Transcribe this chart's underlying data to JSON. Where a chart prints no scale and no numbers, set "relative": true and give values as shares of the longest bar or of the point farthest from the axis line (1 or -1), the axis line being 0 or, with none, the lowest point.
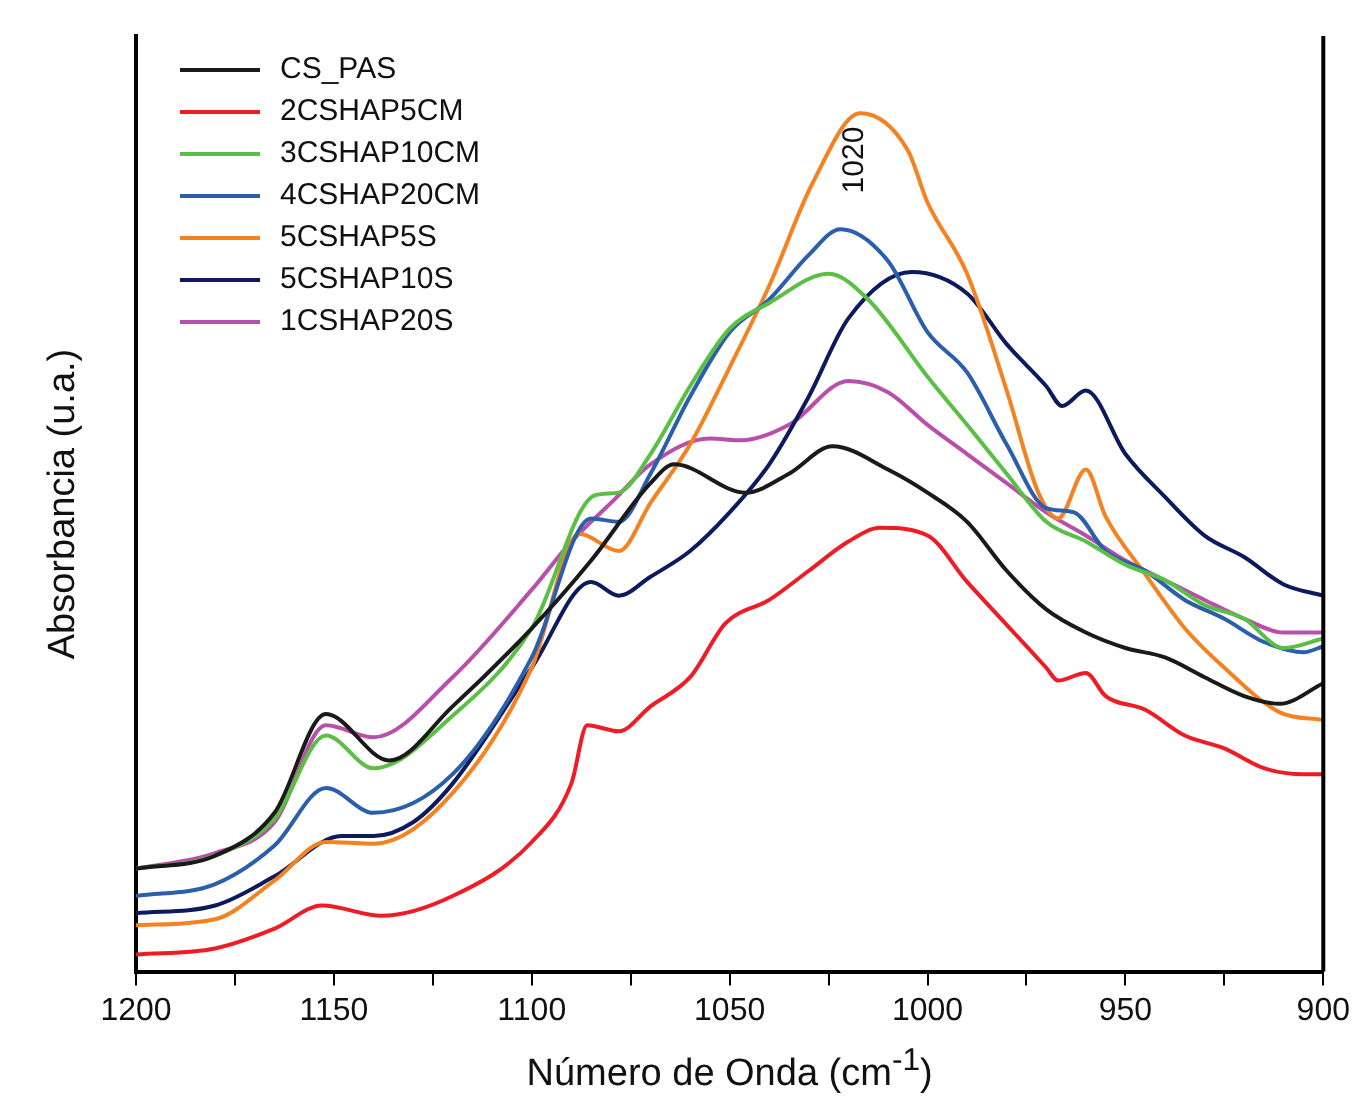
{
  "chart_data": {
    "type": "line",
    "xlabel": "Número de Onda (cm$^{-1}$)",
    "ylabel": "Absorbancia (u.a.)",
    "relative": true,
    "xlim": [
      1200,
      900
    ],
    "xticks": [
      1200,
      {
        "value": 1175,
        "label": null
      },
      1150,
      {
        "value": 1125,
        "label": null
      },
      1100,
      {
        "value": 1075,
        "label": null
      },
      1050,
      {
        "value": 1025,
        "label": null
      },
      1000,
      {
        "value": 975,
        "label": null
      },
      950,
      {
        "value": 925,
        "label": null
      },
      900
    ],
    "grid": false,
    "legend": "top left",
    "marker": "none",
    "line_style": "solid",
    "annotations": [
      "1020"
    ],
    "series": [
      {
        "name": "CS_PAS",
        "color": "#1a1a1a",
        "x": [
          1200,
          1180,
          1165,
          1152,
          1136,
          1120,
          1100,
          1085,
          1070,
          1064,
          1046,
          1035,
          1024,
          1010,
          1000,
          990,
          980,
          970,
          960,
          950,
          940,
          930,
          920,
          911,
          900
        ],
        "values": [
          0.12,
          0.135,
          0.185,
          0.3,
          0.246,
          0.309,
          0.4,
          0.479,
          0.569,
          0.591,
          0.558,
          0.58,
          0.612,
          0.585,
          0.558,
          0.524,
          0.467,
          0.422,
          0.395,
          0.377,
          0.366,
          0.343,
          0.321,
          0.312,
          0.336
        ]
      },
      {
        "name": "2CSHAP5CM",
        "color": "#ee1c25",
        "x": [
          1200,
          1180,
          1165,
          1153,
          1138,
          1120,
          1100,
          1090,
          1086,
          1078,
          1070,
          1060,
          1051,
          1040,
          1030,
          1020,
          1012,
          1000,
          990,
          980,
          970,
          967,
          960,
          955,
          945,
          935,
          925,
          915,
          905,
          900
        ],
        "values": [
          0.02,
          0.027,
          0.05,
          0.077,
          0.065,
          0.088,
          0.151,
          0.219,
          0.287,
          0.28,
          0.309,
          0.343,
          0.406,
          0.433,
          0.467,
          0.501,
          0.517,
          0.508,
          0.454,
          0.404,
          0.354,
          0.339,
          0.348,
          0.321,
          0.305,
          0.275,
          0.26,
          0.237,
          0.23,
          0.23
        ]
      },
      {
        "name": "3CSHAP10CM",
        "color": "#5bbf45",
        "x": [
          1200,
          1180,
          1165,
          1152,
          1140,
          1120,
          1100,
          1084,
          1078,
          1070,
          1060,
          1050,
          1040,
          1025,
          1015,
          1000,
          990,
          980,
          970,
          960,
          950,
          940,
          930,
          920,
          910,
          900
        ],
        "values": [
          0.12,
          0.135,
          0.178,
          0.275,
          0.237,
          0.298,
          0.4,
          0.555,
          0.558,
          0.603,
          0.682,
          0.749,
          0.779,
          0.813,
          0.783,
          0.693,
          0.637,
          0.58,
          0.524,
          0.501,
          0.474,
          0.456,
          0.427,
          0.411,
          0.377,
          0.388
        ]
      },
      {
        "name": "4CSHAP20CM",
        "color": "#2b5eab",
        "x": [
          1200,
          1180,
          1165,
          1152,
          1140,
          1120,
          1100,
          1085,
          1078,
          1070,
          1060,
          1050,
          1040,
          1030,
          1022,
          1010,
          1000,
          990,
          980,
          970,
          963,
          955,
          945,
          935,
          925,
          915,
          905,
          900
        ],
        "values": [
          0.088,
          0.102,
          0.147,
          0.214,
          0.185,
          0.23,
          0.366,
          0.528,
          0.524,
          0.58,
          0.67,
          0.745,
          0.783,
          0.835,
          0.865,
          0.828,
          0.745,
          0.698,
          0.614,
          0.54,
          0.535,
          0.49,
          0.467,
          0.433,
          0.411,
          0.384,
          0.372,
          0.379
        ]
      },
      {
        "name": "5CSHAP5S",
        "color": "#f58220",
        "x": [
          1200,
          1180,
          1165,
          1152,
          1140,
          1120,
          1100,
          1088,
          1078,
          1070,
          1060,
          1050,
          1040,
          1029,
          1017,
          1005,
          1000,
          990,
          980,
          972,
          967,
          960,
          955,
          945,
          935,
          925,
          911,
          900
        ],
        "values": [
          0.054,
          0.061,
          0.106,
          0.151,
          0.149,
          0.208,
          0.354,
          0.51,
          0.49,
          0.546,
          0.614,
          0.704,
          0.799,
          0.919,
          1,
          0.957,
          0.896,
          0.813,
          0.677,
          0.558,
          0.528,
          0.585,
          0.53,
          0.463,
          0.4,
          0.354,
          0.302,
          0.293
        ]
      },
      {
        "name": "5CSHAP10S",
        "color": "#0d1a5c",
        "x": [
          1200,
          1180,
          1165,
          1148,
          1140,
          1130,
          1120,
          1100,
          1085,
          1078,
          1070,
          1060,
          1050,
          1040,
          1030,
          1020,
          1004,
          990,
          980,
          970,
          966,
          960,
          950,
          940,
          930,
          920,
          910,
          900
        ],
        "values": [
          0.068,
          0.077,
          0.111,
          0.158,
          0.158,
          0.174,
          0.219,
          0.354,
          0.454,
          0.438,
          0.46,
          0.49,
          0.535,
          0.591,
          0.67,
          0.761,
          0.815,
          0.79,
          0.731,
          0.682,
          0.659,
          0.677,
          0.603,
          0.553,
          0.508,
          0.483,
          0.451,
          0.438
        ]
      },
      {
        "name": "1CSHAP20S",
        "color": "#b84fa8",
        "x": [
          1200,
          1180,
          1165,
          1152,
          1140,
          1120,
          1100,
          1090,
          1080,
          1070,
          1055,
          1047,
          1035,
          1020,
          1010,
          1000,
          990,
          980,
          970,
          960,
          950,
          940,
          930,
          920,
          910,
          900
        ],
        "values": [
          0.12,
          0.138,
          0.174,
          0.287,
          0.273,
          0.343,
          0.445,
          0.501,
          0.546,
          0.591,
          0.621,
          0.619,
          0.637,
          0.688,
          0.675,
          0.637,
          0.603,
          0.569,
          0.535,
          0.508,
          0.479,
          0.456,
          0.433,
          0.411,
          0.395,
          0.395
        ]
      }
    ]
  }
}
